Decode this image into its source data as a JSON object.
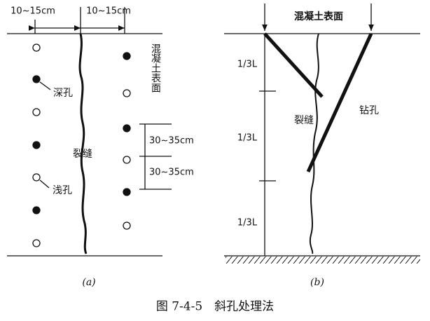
{
  "panel_a": {
    "top_dimensions": [
      "10~15cm",
      "10~15cm"
    ],
    "surface_label": "混凝土表面",
    "deep_hole_label": "深孔",
    "crack_label": "裂缝",
    "shallow_hole_label": "浅孔",
    "spacings": [
      "30~35cm",
      "30~35cm"
    ],
    "caption": "(a)"
  },
  "panel_b": {
    "surface_label": "混凝土表面",
    "segments": [
      "1/3L",
      "1/3L",
      "1/3L"
    ],
    "drill_label": "钻孔",
    "crack_label": "裂缝",
    "caption": "(b)"
  },
  "figure_caption": "图 7-4-5　斜孔处理法"
}
